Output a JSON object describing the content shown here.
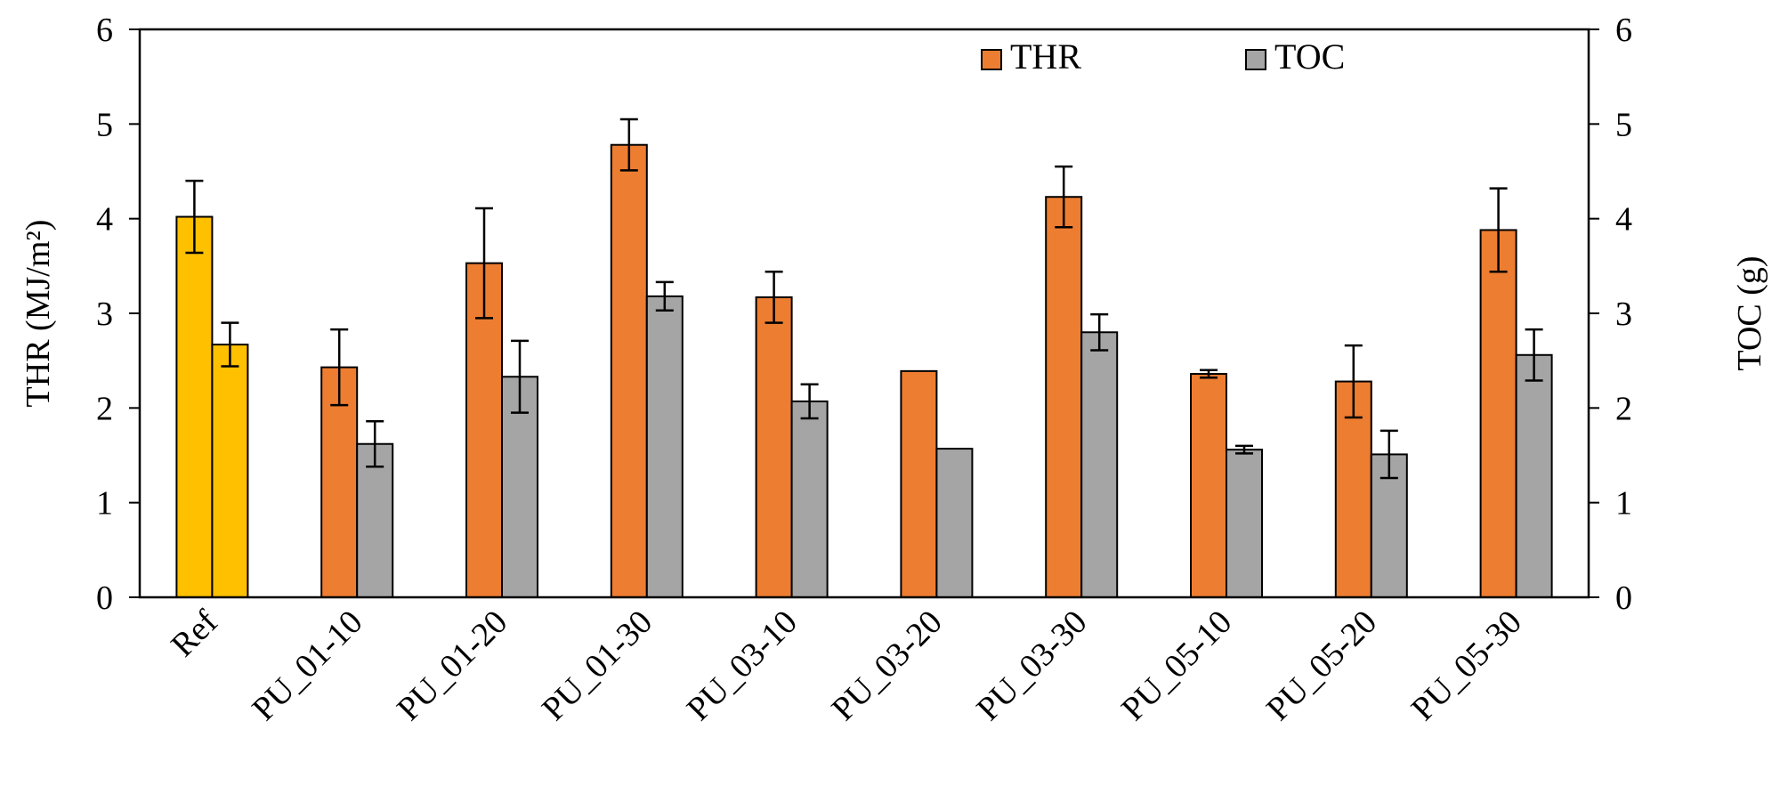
{
  "chart_data": {
    "type": "bar",
    "categories": [
      "Ref",
      "PU_01-10",
      "PU_01-20",
      "PU_01-30",
      "PU_03-10",
      "PU_03-20",
      "PU_03-30",
      "PU_05-10",
      "PU_05-20",
      "PU_05-30"
    ],
    "series": [
      {
        "name": "THR",
        "axis": "left",
        "color": "#ED7D31",
        "values": [
          4.02,
          2.43,
          3.53,
          4.78,
          3.17,
          2.39,
          4.23,
          2.36,
          2.28,
          3.88
        ],
        "errors": [
          0.38,
          0.4,
          0.58,
          0.27,
          0.27,
          0.0,
          0.32,
          0.04,
          0.38,
          0.44
        ]
      },
      {
        "name": "TOC",
        "axis": "right",
        "color": "#A5A5A5",
        "values": [
          2.67,
          1.62,
          2.33,
          3.18,
          2.07,
          1.57,
          2.8,
          1.56,
          1.51,
          2.56
        ],
        "errors": [
          0.23,
          0.24,
          0.38,
          0.15,
          0.18,
          0.0,
          0.19,
          0.04,
          0.25,
          0.27
        ]
      }
    ],
    "highlight": {
      "category_index": 0,
      "color": "#FFC000"
    },
    "ylabel_left": "THR (MJ/m²)",
    "ylabel_right": "TOC (g)",
    "ylim_left": [
      0,
      6
    ],
    "ylim_right": [
      0,
      6
    ],
    "yticks_left": [
      "0",
      "1",
      "2",
      "3",
      "4",
      "5",
      "6"
    ],
    "yticks_right": [
      "0",
      "1",
      "2",
      "3",
      "4",
      "5",
      "6"
    ],
    "legend": {
      "placement": "top-right",
      "entries": [
        "THR",
        "TOC"
      ]
    },
    "grid": false
  }
}
